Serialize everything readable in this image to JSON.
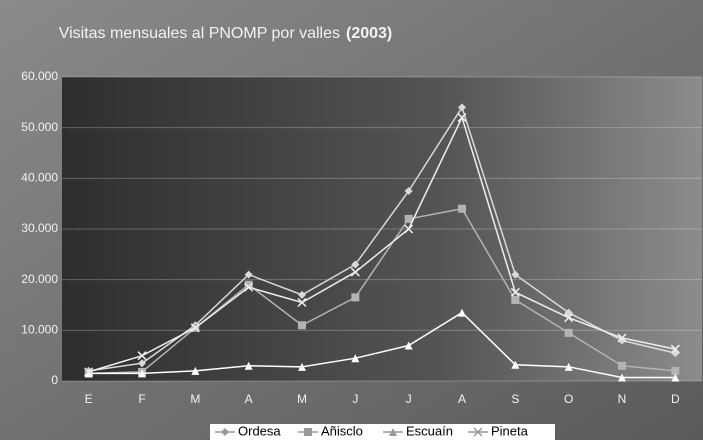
{
  "chart_data": {
    "type": "line",
    "title": "Visitas mensuales al PNOMP por valles",
    "title_bold": "(2003)",
    "categories": [
      "E",
      "F",
      "M",
      "A",
      "M",
      "J",
      "J",
      "A",
      "S",
      "O",
      "N",
      "D"
    ],
    "series": [
      {
        "name": "Ordesa",
        "color": "#d9d9d9",
        "marker": "diamond",
        "values": [
          2000,
          3500,
          11000,
          21000,
          17000,
          23000,
          37500,
          54000,
          21000,
          13500,
          8000,
          5500
        ]
      },
      {
        "name": "Añisclo",
        "color": "#b3b3b3",
        "marker": "square",
        "values": [
          1500,
          1800,
          10500,
          19000,
          11000,
          16500,
          32000,
          34000,
          16000,
          9500,
          3000,
          2000
        ]
      },
      {
        "name": "Escuaín",
        "color": "#ffffff",
        "marker": "triangle",
        "values": [
          1500,
          1500,
          2000,
          3000,
          2800,
          4500,
          7000,
          13500,
          3200,
          2800,
          700,
          700
        ]
      },
      {
        "name": "Pineta",
        "color": "#eeeeee",
        "marker": "x",
        "values": [
          1800,
          5000,
          10500,
          18500,
          15500,
          21500,
          30000,
          52000,
          17500,
          12500,
          8500,
          6300
        ]
      }
    ],
    "ylim": [
      0,
      60000
    ],
    "yticks": [
      0,
      {
        "value": 10000,
        "label": "10.000"
      },
      {
        "value": 20000,
        "label": "20.000"
      },
      {
        "value": 30000,
        "label": "30.000"
      },
      {
        "value": 40000,
        "label": "40.000"
      },
      {
        "value": 50000,
        "label": "50.000"
      },
      {
        "value": 60000,
        "label": "60.000"
      }
    ],
    "grid": true,
    "legend": "bottom"
  }
}
